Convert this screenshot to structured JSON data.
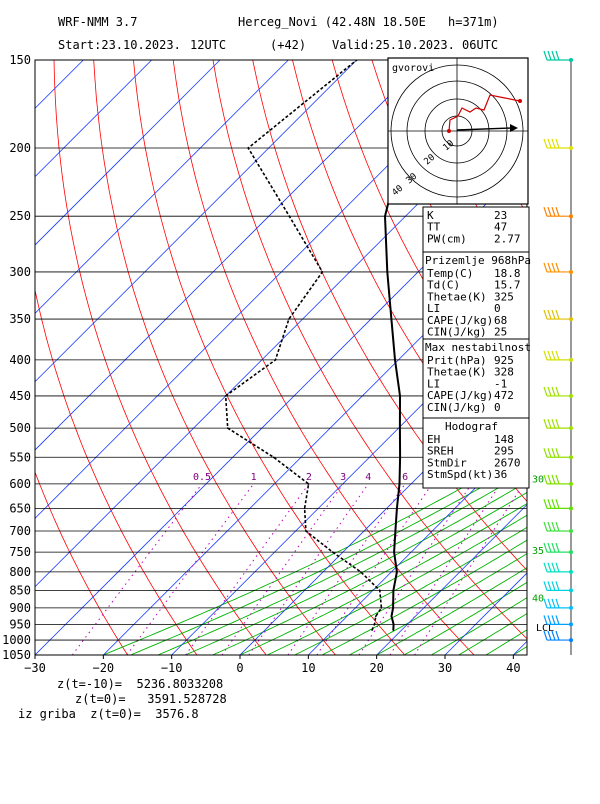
{
  "header": {
    "model": "WRF-NMM 3.7",
    "station": "Herceg_Novi (42.48N 18.50E",
    "height": "h=371m)",
    "start": "Start:23.10.2023.",
    "start_hour": "12UTC",
    "lead": "(+42)",
    "valid": "Valid:25.10.2023.",
    "valid_hour": "06UTC"
  },
  "chart_data": {
    "type": "line",
    "title": "",
    "xlabel": "",
    "ylabel": "",
    "x_axis_ticks": [
      "−30",
      "−20",
      "−10",
      "0",
      "10",
      "20",
      "30",
      "40"
    ],
    "x_range_at_1050": [
      -30,
      42
    ],
    "pressure_ticks": [
      150,
      200,
      250,
      300,
      350,
      400,
      450,
      500,
      550,
      600,
      650,
      700,
      750,
      800,
      850,
      900,
      950,
      1000,
      1050
    ],
    "p_range": [
      150,
      1050
    ],
    "skew_deg_per_hPa_log": "skewed",
    "mixing_ratio_labels": [
      "0.5",
      "1",
      "2",
      "3",
      "4",
      "6",
      "8"
    ],
    "wetbulb_labels": [
      "30",
      "35",
      "40"
    ],
    "lcl_label": "LCL",
    "series": [
      {
        "name": "T",
        "color": "#000000",
        "points": [
          {
            "p": 968,
            "t": 18.8
          },
          {
            "p": 950,
            "t": 18.0
          },
          {
            "p": 925,
            "t": 16.5
          },
          {
            "p": 900,
            "t": 15.5
          },
          {
            "p": 850,
            "t": 13.0
          },
          {
            "p": 800,
            "t": 10.8
          },
          {
            "p": 750,
            "t": 7.5
          },
          {
            "p": 700,
            "t": 4.6
          },
          {
            "p": 650,
            "t": 1.5
          },
          {
            "p": 600,
            "t": -1.7
          },
          {
            "p": 550,
            "t": -5.5
          },
          {
            "p": 500,
            "t": -9.8
          },
          {
            "p": 450,
            "t": -14.5
          },
          {
            "p": 400,
            "t": -20.5
          },
          {
            "p": 350,
            "t": -27.0
          },
          {
            "p": 300,
            "t": -34.5
          },
          {
            "p": 250,
            "t": -43.0
          },
          {
            "p": 200,
            "t": -50.5
          },
          {
            "p": 150,
            "t": -57.0
          }
        ]
      },
      {
        "name": "Td",
        "color": "#000000",
        "points": [
          {
            "p": 968,
            "t": 15.7
          },
          {
            "p": 950,
            "t": 15.2
          },
          {
            "p": 925,
            "t": 14.2
          },
          {
            "p": 900,
            "t": 13.8
          },
          {
            "p": 850,
            "t": 11.0
          },
          {
            "p": 800,
            "t": 5.5
          },
          {
            "p": 750,
            "t": -1.5
          },
          {
            "p": 700,
            "t": -8.5
          },
          {
            "p": 650,
            "t": -12.0
          },
          {
            "p": 600,
            "t": -15.0
          },
          {
            "p": 550,
            "t": -24.0
          },
          {
            "p": 500,
            "t": -35.0
          },
          {
            "p": 450,
            "t": -40.0
          },
          {
            "p": 400,
            "t": -38.0
          },
          {
            "p": 350,
            "t": -42.0
          },
          {
            "p": 300,
            "t": -44.0
          },
          {
            "p": 250,
            "t": -57.0
          },
          {
            "p": 200,
            "t": -73.0
          },
          {
            "p": 150,
            "t": -70.0
          }
        ]
      }
    ],
    "winds": [
      {
        "p": 150,
        "color": "#00c8a0"
      },
      {
        "p": 200,
        "color": "#e0e000"
      },
      {
        "p": 250,
        "color": "#ff8000"
      },
      {
        "p": 300,
        "color": "#ff9000"
      },
      {
        "p": 350,
        "color": "#e0c000"
      },
      {
        "p": 400,
        "color": "#d0e000"
      },
      {
        "p": 450,
        "color": "#a0e000"
      },
      {
        "p": 500,
        "color": "#a0e000"
      },
      {
        "p": 550,
        "color": "#90e000"
      },
      {
        "p": 600,
        "color": "#80e000"
      },
      {
        "p": 650,
        "color": "#60e000"
      },
      {
        "p": 700,
        "color": "#40e040"
      },
      {
        "p": 750,
        "color": "#20e060"
      },
      {
        "p": 800,
        "color": "#00e0c0"
      },
      {
        "p": 850,
        "color": "#00d0e0"
      },
      {
        "p": 900,
        "color": "#00c0ff"
      },
      {
        "p": 950,
        "color": "#00a0ff"
      },
      {
        "p": 1000,
        "color": "#0080ff"
      }
    ],
    "hodograph": {
      "title": "gvorovi",
      "ring_labels": [
        "10",
        "20",
        "30",
        "40"
      ]
    }
  },
  "indices": {
    "basic": [
      {
        "k": "K",
        "v": "23"
      },
      {
        "k": "TT",
        "v": "47"
      },
      {
        "k": "PW(cm)",
        "v": "2.77"
      }
    ],
    "surface_title": "Prizemlje 968hPa",
    "surface": [
      {
        "k": "Temp(C)",
        "v": "18.8"
      },
      {
        "k": "Td(C)",
        "v": "15.7"
      },
      {
        "k": "Thetae(K)",
        "v": "325"
      },
      {
        "k": "LI",
        "v": "0"
      },
      {
        "k": "CAPE(J/kg)",
        "v": "68"
      },
      {
        "k": "CIN(J/kg)",
        "v": "25"
      }
    ],
    "maxinst_title": "Max nestabilnost",
    "maxinst": [
      {
        "k": "Prit(hPa)",
        "v": "925"
      },
      {
        "k": "Thetae(K)",
        "v": "328"
      },
      {
        "k": "LI",
        "v": "-1"
      },
      {
        "k": "CAPE(J/kg)",
        "v": "472"
      },
      {
        "k": "CIN(J/kg)",
        "v": "0"
      }
    ],
    "hodo_title": "Hodograf",
    "hodo": [
      {
        "k": "EH",
        "v": "148"
      },
      {
        "k": "SREH",
        "v": "295"
      },
      {
        "k": "StmDir",
        "v": "2670"
      },
      {
        "k": "StmSpd(kt)",
        "v": "36"
      }
    ]
  },
  "footer": {
    "line1": "z(t=-10)=  5236.8033208",
    "line2": "z(t=0)=   3591.528728",
    "line3": "iz griba  z(t=0)=  3576.8"
  }
}
